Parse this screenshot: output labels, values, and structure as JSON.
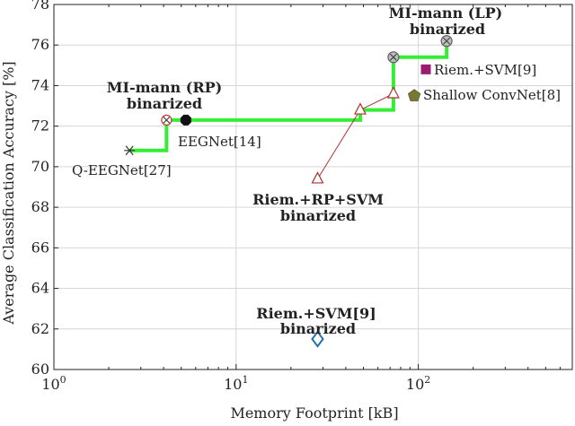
{
  "chart_data": {
    "type": "scatter",
    "xlabel": "Memory Footprint [kB]",
    "ylabel": "Average Classification Accuracy [%]",
    "xscale": "log",
    "xlim": [
      1,
      700
    ],
    "ylim": [
      60,
      78
    ],
    "x_ticks": [
      {
        "value": 1,
        "base": "10",
        "exp": "0"
      },
      {
        "value": 10,
        "base": "10",
        "exp": "1"
      },
      {
        "value": 100,
        "base": "10",
        "exp": "2"
      }
    ],
    "y_ticks": [
      60,
      62,
      64,
      66,
      68,
      70,
      72,
      74,
      76,
      78
    ],
    "grid": true,
    "colors": {
      "pareto": "#33ee33",
      "riem_rp_line": "#aa3333",
      "riem_svm": "#9b1b6e",
      "shallow": "#7a7a2a",
      "riem_svm_bin": "#1f6fb5",
      "mi_rp": "#cc3333"
    },
    "pareto_front": [
      {
        "x": 2.6,
        "y": 70.8
      },
      {
        "x": 4.15,
        "y": 70.8
      },
      {
        "x": 4.15,
        "y": 72.3
      },
      {
        "x": 48,
        "y": 72.3
      },
      {
        "x": 48,
        "y": 72.8
      },
      {
        "x": 73,
        "y": 72.8
      },
      {
        "x": 73,
        "y": 75.4
      },
      {
        "x": 143,
        "y": 75.4
      },
      {
        "x": 143,
        "y": 76.2
      }
    ],
    "riem_rp_curve": [
      {
        "x": 28,
        "y": 69.4
      },
      {
        "x": 48,
        "y": 72.8
      },
      {
        "x": 73,
        "y": 73.6
      }
    ],
    "points": [
      {
        "name": "Q-EEGNet[27]",
        "x": 2.6,
        "y": 70.8,
        "marker": "star"
      },
      {
        "name": "MI-mann-RP",
        "x": 4.15,
        "y": 72.3,
        "marker": "circle-x"
      },
      {
        "name": "EEGNet[14]",
        "x": 5.3,
        "y": 72.3,
        "marker": "octagon"
      },
      {
        "name": "Riem-RP-1",
        "x": 28,
        "y": 69.4,
        "marker": "triangle"
      },
      {
        "name": "Riem-RP-2",
        "x": 48,
        "y": 72.8,
        "marker": "triangle"
      },
      {
        "name": "Riem-RP-3",
        "x": 73,
        "y": 73.6,
        "marker": "triangle"
      },
      {
        "name": "MI-mann-LP-1",
        "x": 73,
        "y": 75.4,
        "marker": "circle-dot"
      },
      {
        "name": "MI-mann-LP-2",
        "x": 143,
        "y": 76.2,
        "marker": "circle-dot"
      },
      {
        "name": "Riem.+SVM[9]",
        "x": 110,
        "y": 74.8,
        "marker": "square"
      },
      {
        "name": "Shallow ConvNet[8]",
        "x": 95,
        "y": 73.5,
        "marker": "pentagon"
      },
      {
        "name": "Riem.+SVM[9] binarized",
        "x": 28,
        "y": 61.5,
        "marker": "diamond"
      }
    ],
    "annotations": {
      "mi_lp": {
        "line1": "MI-mann (LP)",
        "line2": "binarized"
      },
      "mi_rp": {
        "line1": "MI-mann (RP)",
        "line2": "binarized"
      },
      "riem_rp": {
        "line1": "Riem.+RP+SVM",
        "line2": "binarized"
      },
      "riem_svm_bin": {
        "line1": "Riem.+SVM[9]",
        "line2": "binarized"
      },
      "eegnet": "EEGNet[14]",
      "qeegnet": "Q-EEGNet[27]",
      "riem_svm": "Riem.+SVM[9]",
      "shallow": "Shallow ConvNet[8]"
    }
  }
}
